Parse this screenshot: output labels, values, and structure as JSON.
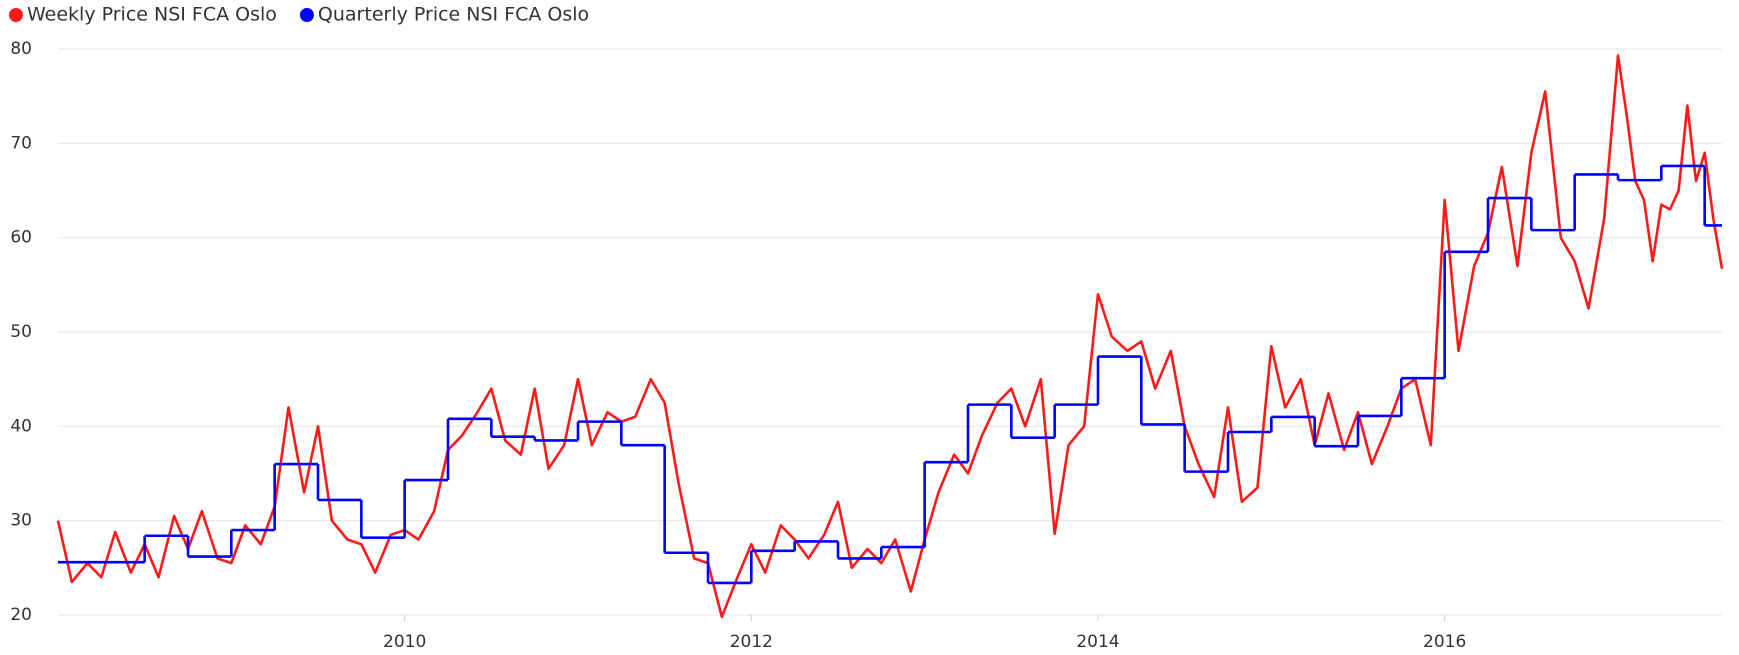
{
  "chart_data": {
    "type": "line",
    "xlim": [
      2008,
      2017.6
    ],
    "xticks": [
      2010,
      2012,
      2014,
      2016
    ],
    "ylim": [
      20,
      80
    ],
    "yticks": [
      20,
      30,
      40,
      50,
      60,
      70,
      80
    ],
    "grid": true,
    "legend": "top-left",
    "series": [
      {
        "name": "Weekly Price NSI FCA Oslo",
        "color": "#ff1a1a",
        "x": [
          2008,
          2008.08,
          2008.17,
          2008.25,
          2008.33,
          2008.42,
          2008.5,
          2008.58,
          2008.67,
          2008.75,
          2008.83,
          2008.92,
          2009,
          2009.08,
          2009.17,
          2009.25,
          2009.33,
          2009.42,
          2009.5,
          2009.58,
          2009.67,
          2009.75,
          2009.83,
          2009.92,
          2010,
          2010.08,
          2010.17,
          2010.25,
          2010.33,
          2010.42,
          2010.5,
          2010.58,
          2010.67,
          2010.75,
          2010.83,
          2010.92,
          2011,
          2011.08,
          2011.17,
          2011.25,
          2011.33,
          2011.42,
          2011.5,
          2011.58,
          2011.67,
          2011.75,
          2011.83,
          2011.92,
          2012,
          2012.08,
          2012.17,
          2012.25,
          2012.33,
          2012.42,
          2012.5,
          2012.58,
          2012.67,
          2012.75,
          2012.83,
          2012.92,
          2013,
          2013.08,
          2013.17,
          2013.25,
          2013.33,
          2013.42,
          2013.5,
          2013.58,
          2013.67,
          2013.75,
          2013.83,
          2013.92,
          2014,
          2014.08,
          2014.17,
          2014.25,
          2014.33,
          2014.42,
          2014.5,
          2014.58,
          2014.67,
          2014.75,
          2014.83,
          2014.92,
          2015,
          2015.08,
          2015.17,
          2015.25,
          2015.33,
          2015.42,
          2015.5,
          2015.58,
          2015.67,
          2015.75,
          2015.83,
          2015.92,
          2016,
          2016.08,
          2016.17,
          2016.25,
          2016.33,
          2016.42,
          2016.5,
          2016.58,
          2016.67,
          2016.75,
          2016.83,
          2016.92,
          2017,
          2017.05,
          2017.1,
          2017.15,
          2017.2,
          2017.25,
          2017.3,
          2017.35,
          2017.4,
          2017.45,
          2017.5,
          2017.55,
          2017.6
        ],
        "values": [
          30.0,
          23.5,
          25.5,
          24.0,
          28.8,
          24.5,
          27.5,
          24.0,
          30.5,
          27.0,
          31.0,
          26.0,
          25.5,
          29.5,
          27.5,
          31.5,
          42.0,
          33.0,
          40.0,
          30.0,
          28.0,
          27.5,
          24.5,
          28.5,
          29.0,
          28.0,
          31.0,
          37.5,
          39.0,
          41.5,
          44.0,
          38.5,
          37.0,
          44.0,
          35.5,
          38.0,
          45.0,
          38.0,
          41.5,
          40.5,
          41.0,
          45.0,
          42.5,
          34.0,
          26.0,
          25.5,
          19.8,
          24.0,
          27.5,
          24.5,
          29.5,
          28.0,
          26.0,
          28.5,
          32.0,
          25.0,
          27.0,
          25.5,
          28.0,
          22.5,
          28.0,
          33.0,
          37.0,
          35.0,
          39.0,
          42.5,
          44.0,
          40.0,
          45.0,
          28.6,
          38.0,
          40.0,
          54.0,
          49.5,
          48.0,
          49.0,
          44.0,
          48.0,
          40.0,
          36.0,
          32.5,
          42.0,
          32.0,
          33.5,
          48.5,
          42.0,
          45.0,
          38.0,
          43.5,
          37.5,
          41.5,
          36.0,
          40.0,
          44.0,
          45.0,
          38.0,
          64.0,
          48.0,
          57.0,
          60.5,
          67.5,
          57.0,
          69.0,
          75.5,
          60.0,
          57.5,
          52.5,
          62.0,
          79.3,
          73.0,
          66.0,
          64.0,
          57.5,
          63.5,
          63.0,
          65.0,
          74.0,
          66.0,
          69.0,
          62.0,
          56.7
        ]
      },
      {
        "name": "Quarterly Price NSI FCA Oslo",
        "color": "#0000ff",
        "step": "post",
        "x": [
          2008,
          2008.5,
          2008.75,
          2009,
          2009.25,
          2009.5,
          2009.75,
          2010,
          2010.25,
          2010.5,
          2010.75,
          2011,
          2011.25,
          2011.5,
          2011.75,
          2012,
          2012.25,
          2012.5,
          2012.75,
          2013,
          2013.25,
          2013.5,
          2013.75,
          2014,
          2014.25,
          2014.5,
          2014.75,
          2015,
          2015.25,
          2015.5,
          2015.75,
          2016,
          2016.25,
          2016.5,
          2016.75,
          2017,
          2017.25,
          2017.5
        ],
        "values": [
          25.6,
          28.4,
          26.2,
          29.0,
          36.0,
          32.2,
          28.2,
          34.3,
          40.8,
          38.9,
          38.5,
          40.5,
          38.0,
          26.6,
          23.4,
          26.8,
          27.8,
          26.0,
          27.2,
          36.2,
          42.3,
          38.8,
          42.3,
          47.4,
          40.2,
          35.2,
          39.4,
          41.0,
          37.9,
          41.1,
          45.1,
          58.5,
          64.2,
          60.8,
          66.7,
          66.1,
          67.6,
          61.3
        ]
      }
    ]
  }
}
